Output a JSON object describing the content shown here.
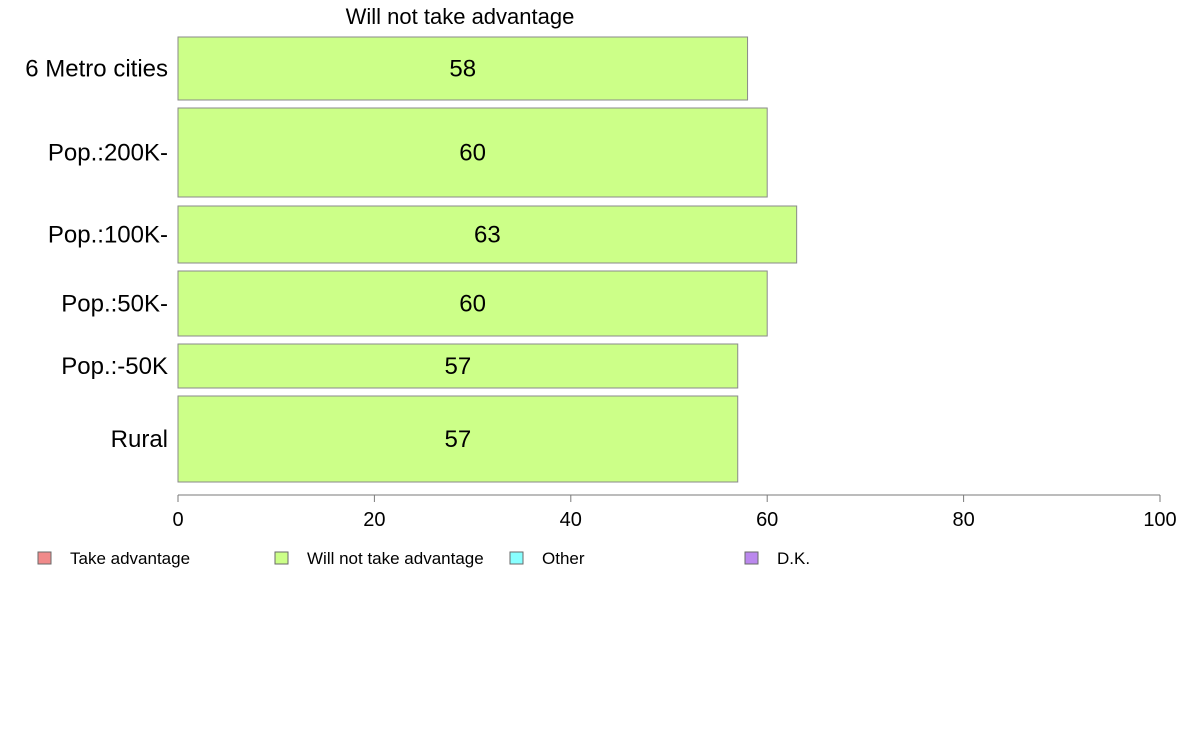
{
  "chart_data": {
    "type": "bar",
    "orientation": "horizontal",
    "title": "Will not take advantage",
    "categories": [
      "6 Metro cities",
      "Pop.:200K-",
      "Pop.:100K-",
      "Pop.:50K-",
      "Pop.:-50K",
      "Rural"
    ],
    "series": [
      {
        "name": "Will not take advantage",
        "values": [
          58,
          60,
          63,
          60,
          57,
          57
        ],
        "data_labels": [
          "58",
          "60",
          "63",
          "60",
          "57",
          "57"
        ],
        "color": "#ccff88"
      }
    ],
    "xlim": [
      0,
      100
    ],
    "xticks": [
      "0",
      "20",
      "40",
      "60",
      "80",
      "100"
    ],
    "grid": false,
    "legend": {
      "placement": "bottom",
      "entries": [
        {
          "label": "Take advantage",
          "color": "#f08a8a"
        },
        {
          "label": "Will not take advantage",
          "color": "#ccff88"
        },
        {
          "label": "Other",
          "color": "#88ffff"
        },
        {
          "label": "D.K.",
          "color": "#bb88ee"
        }
      ]
    }
  }
}
